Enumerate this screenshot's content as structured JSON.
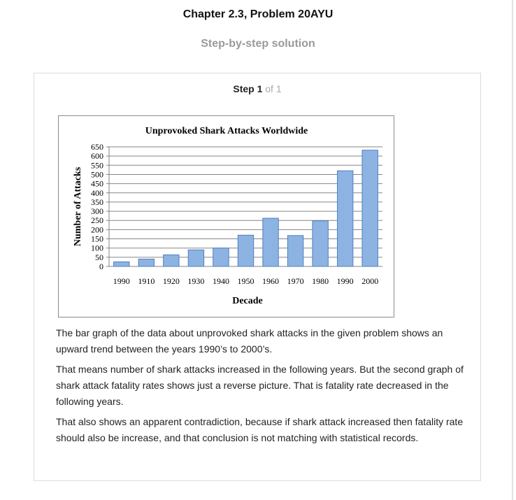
{
  "header": {
    "title": "Chapter 2.3, Problem 20AYU",
    "subtitle": "Step-by-step solution"
  },
  "step": {
    "label": "Step 1",
    "of": "of 1"
  },
  "chart_data": {
    "type": "bar",
    "title": "Unprovoked Shark Attacks Worldwide",
    "xlabel": "Decade",
    "ylabel": "Number of Attacks",
    "categories": [
      "1990",
      "1910",
      "1920",
      "1930",
      "1940",
      "1950",
      "1960",
      "1970",
      "1980",
      "1990",
      "2000"
    ],
    "values": [
      25,
      40,
      63,
      90,
      100,
      170,
      262,
      168,
      248,
      520,
      632
    ],
    "ylim": [
      0,
      650
    ],
    "yticks": [
      0,
      50,
      100,
      150,
      200,
      250,
      300,
      350,
      400,
      450,
      500,
      550,
      600,
      650
    ],
    "grid": true,
    "colors": {
      "bar_fill": "#8db3e2",
      "bar_stroke": "#4f81bd",
      "grid": "#868686"
    }
  },
  "answer": {
    "paragraphs": [
      "The bar graph of the data about unprovoked shark attacks in the given problem shows an upward trend between the years 1990’s to 2000’s.",
      "That means number of shark attacks increased in the following years. But the second graph of shark attack fatality rates shows just a reverse picture. That is fatality rate decreased in the following years.",
      "That also shows an apparent contradiction, because if shark attack increased then fatality rate should also be increase, and that conclusion is not matching with statistical records."
    ]
  }
}
